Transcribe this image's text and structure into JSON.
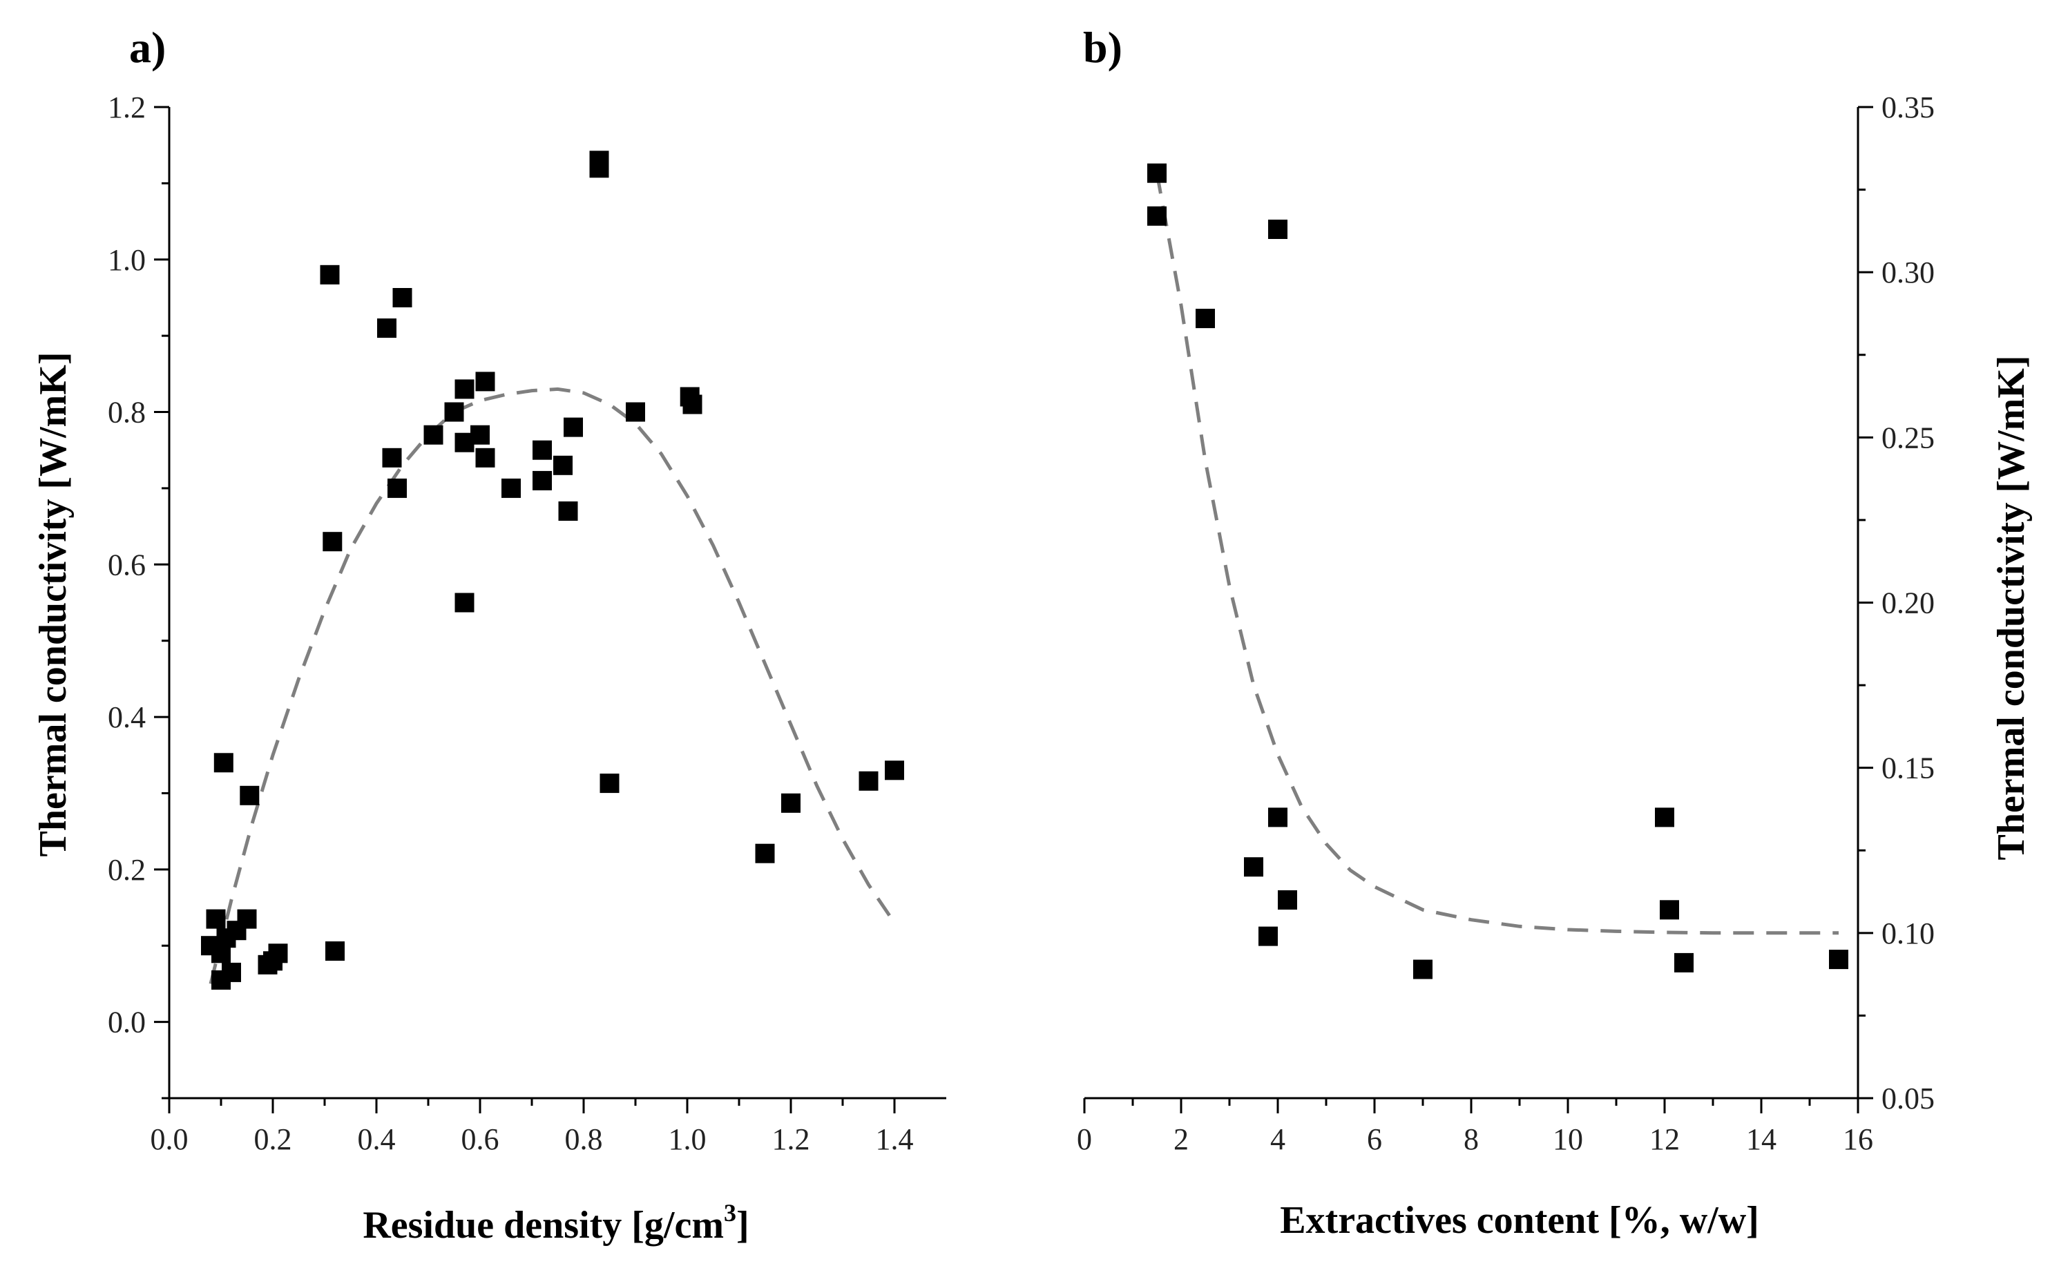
{
  "chart_data": [
    {
      "type": "scatter",
      "panel_label": "a)",
      "title": "",
      "xlabel_main": "Residue density [g/cm",
      "xlabel_sup": "3",
      "xlabel_end": "]",
      "ylabel": "Thermal conductivity [W/mK]",
      "xlim": [
        0.0,
        1.5
      ],
      "ylim": [
        -0.1,
        1.2
      ],
      "xticks": [
        "0.0",
        "0.2",
        "0.4",
        "0.6",
        "0.8",
        "1.0",
        "1.2",
        "1.4"
      ],
      "yticks": [
        "0.0",
        "0.2",
        "0.4",
        "0.6",
        "0.8",
        "1.0",
        "1.2"
      ],
      "series": [
        {
          "name": "data",
          "marker": "square",
          "x": [
            0.08,
            0.09,
            0.1,
            0.1,
            0.11,
            0.12,
            0.13,
            0.15,
            0.105,
            0.155,
            0.19,
            0.2,
            0.21,
            0.31,
            0.315,
            0.32,
            0.42,
            0.43,
            0.44,
            0.45,
            0.51,
            0.55,
            0.57,
            0.57,
            0.57,
            0.6,
            0.61,
            0.61,
            0.66,
            0.72,
            0.72,
            0.76,
            0.77,
            0.78,
            0.83,
            0.83,
            0.85,
            0.9,
            1.005,
            1.01,
            1.15,
            1.2,
            1.35,
            1.4
          ],
          "y": [
            0.1,
            0.135,
            0.055,
            0.09,
            0.11,
            0.065,
            0.12,
            0.135,
            0.34,
            0.297,
            0.075,
            0.08,
            0.09,
            0.98,
            0.63,
            0.093,
            0.91,
            0.74,
            0.7,
            0.95,
            0.77,
            0.8,
            0.76,
            0.83,
            0.55,
            0.77,
            0.74,
            0.84,
            0.7,
            0.75,
            0.71,
            0.73,
            0.67,
            0.78,
            1.12,
            1.13,
            0.313,
            0.8,
            0.82,
            0.81,
            0.221,
            0.287,
            0.316,
            0.33
          ]
        },
        {
          "name": "fit",
          "style": "dashed",
          "color": "#7f7f7f",
          "x": [
            0.08,
            0.12,
            0.16,
            0.2,
            0.25,
            0.3,
            0.35,
            0.4,
            0.45,
            0.5,
            0.55,
            0.6,
            0.65,
            0.7,
            0.75,
            0.8,
            0.85,
            0.9,
            0.95,
            1.0,
            1.05,
            1.1,
            1.15,
            1.2,
            1.25,
            1.3,
            1.35,
            1.4
          ],
          "y": [
            0.05,
            0.16,
            0.26,
            0.35,
            0.45,
            0.54,
            0.62,
            0.68,
            0.73,
            0.77,
            0.8,
            0.815,
            0.823,
            0.828,
            0.83,
            0.825,
            0.81,
            0.785,
            0.745,
            0.69,
            0.625,
            0.55,
            0.47,
            0.39,
            0.31,
            0.24,
            0.18,
            0.13
          ]
        }
      ]
    },
    {
      "type": "scatter",
      "panel_label": "b)",
      "title": "",
      "xlabel": "Extractives content [%, w/w]",
      "ylabel": "Thermal conductivity [W/mK]",
      "y_axis_side": "right",
      "xlim": [
        0,
        16
      ],
      "ylim": [
        0.05,
        0.35
      ],
      "xticks": [
        "0",
        "2",
        "4",
        "6",
        "8",
        "10",
        "12",
        "14",
        "16"
      ],
      "yticks": [
        "0.05",
        "0.10",
        "0.15",
        "0.20",
        "0.25",
        "0.30",
        "0.35"
      ],
      "series": [
        {
          "name": "data",
          "marker": "square",
          "x": [
            1.5,
            1.5,
            2.5,
            4.0,
            3.5,
            3.8,
            4.0,
            4.2,
            7.0,
            12.0,
            12.1,
            12.4,
            15.6
          ],
          "y": [
            0.33,
            0.317,
            0.286,
            0.313,
            0.12,
            0.099,
            0.135,
            0.11,
            0.089,
            0.135,
            0.107,
            0.091,
            0.092
          ]
        },
        {
          "name": "fit",
          "style": "dashed",
          "color": "#7f7f7f",
          "x": [
            1.5,
            2.0,
            2.5,
            3.0,
            3.5,
            4.0,
            4.5,
            5.0,
            5.5,
            6.0,
            7.0,
            8.0,
            9.0,
            10.0,
            11.0,
            12.0,
            13.0,
            14.0,
            15.0,
            15.6
          ],
          "y": [
            0.33,
            0.29,
            0.243,
            0.205,
            0.175,
            0.154,
            0.138,
            0.127,
            0.119,
            0.114,
            0.107,
            0.104,
            0.102,
            0.101,
            0.1005,
            0.1002,
            0.1,
            0.1,
            0.1,
            0.1
          ]
        }
      ]
    }
  ]
}
